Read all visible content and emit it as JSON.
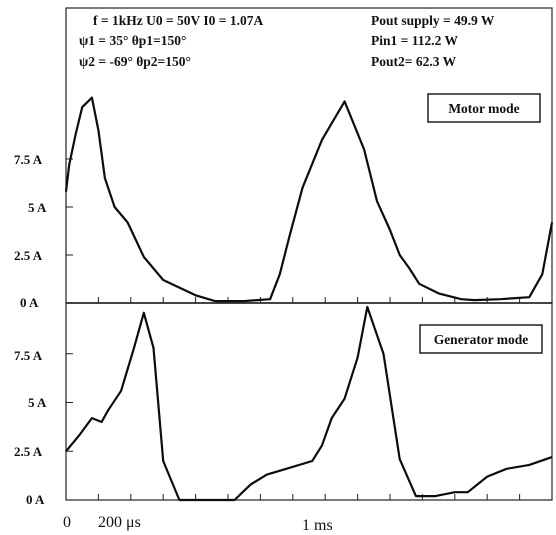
{
  "header": {
    "line1": "f = 1kHz  U0 = 50V  I0 = 1.07A",
    "line2": "ψ1 = 35°   θp1=150°",
    "line3": "ψ2 = -69°  θp2=150°",
    "pout_supply": "Pout supply = 49.9 W",
    "pin1": "Pin1 = 112.2 W",
    "pout2": "Pout2= 62.3 W"
  },
  "chart_data": [
    {
      "type": "line",
      "title": "Motor mode",
      "y_tick_labels": [
        "0 A",
        "2.5 A",
        "5 A",
        "7.5 A"
      ],
      "y_ticks": [
        0,
        2.5,
        5,
        7.5
      ],
      "ylim": [
        0,
        12.5
      ],
      "xlim": [
        0,
        1.5
      ],
      "x_unit": "ms",
      "series": [
        {
          "x": [
            0,
            0.01,
            0.03,
            0.05,
            0.08,
            0.1,
            0.12,
            0.15,
            0.19,
            0.24,
            0.3,
            0.4,
            0.46,
            0.49,
            0.5,
            0.52,
            0.55,
            0.59,
            0.63,
            0.66,
            0.69,
            0.73,
            0.79,
            0.86,
            0.92,
            0.96,
            1.0,
            1.03,
            1.06,
            1.09,
            1.15,
            1.22,
            1.26,
            1.34,
            1.43,
            1.47,
            1.5
          ],
          "y": [
            5.8,
            7.2,
            8.8,
            10.2,
            10.7,
            9.0,
            6.5,
            5.0,
            4.2,
            2.4,
            1.2,
            0.4,
            0.1,
            0.1,
            0.1,
            0.1,
            0.1,
            0.15,
            0.2,
            1.5,
            3.5,
            6.0,
            8.5,
            10.5,
            8.0,
            5.3,
            3.8,
            2.5,
            1.8,
            1.0,
            0.5,
            0.2,
            0.15,
            0.2,
            0.3,
            1.5,
            4.2
          ]
        }
      ]
    },
    {
      "type": "line",
      "title": "Generator mode",
      "y_tick_labels": [
        "0 A",
        "2.5 A",
        "5 A",
        "7.5 A"
      ],
      "y_ticks": [
        0,
        2.5,
        5,
        7.5
      ],
      "ylim": [
        0,
        10
      ],
      "xlim": [
        0,
        1.5
      ],
      "x_unit": "ms",
      "x_tick_labels": [
        "0",
        "200 μs",
        "1 ms"
      ],
      "x_ticks": [
        0,
        0.12,
        0.68
      ],
      "series": [
        {
          "x": [
            0,
            0.04,
            0.08,
            0.11,
            0.13,
            0.17,
            0.21,
            0.24,
            0.27,
            0.3,
            0.35,
            0.39,
            0.45,
            0.5,
            0.52,
            0.57,
            0.62,
            0.68,
            0.76,
            0.79,
            0.82,
            0.86,
            0.9,
            0.93,
            0.98,
            1.03,
            1.08,
            1.14,
            1.2,
            1.24,
            1.3,
            1.36,
            1.43,
            1.5
          ],
          "y": [
            2.5,
            3.3,
            4.2,
            4.0,
            4.6,
            5.6,
            7.8,
            9.6,
            7.8,
            2.0,
            0,
            0,
            0,
            0,
            0,
            0.8,
            1.3,
            1.6,
            2.0,
            2.8,
            4.2,
            5.2,
            7.3,
            9.9,
            7.5,
            2.1,
            0.2,
            0.2,
            0.4,
            0.4,
            1.2,
            1.6,
            1.8,
            2.2
          ]
        }
      ]
    }
  ]
}
